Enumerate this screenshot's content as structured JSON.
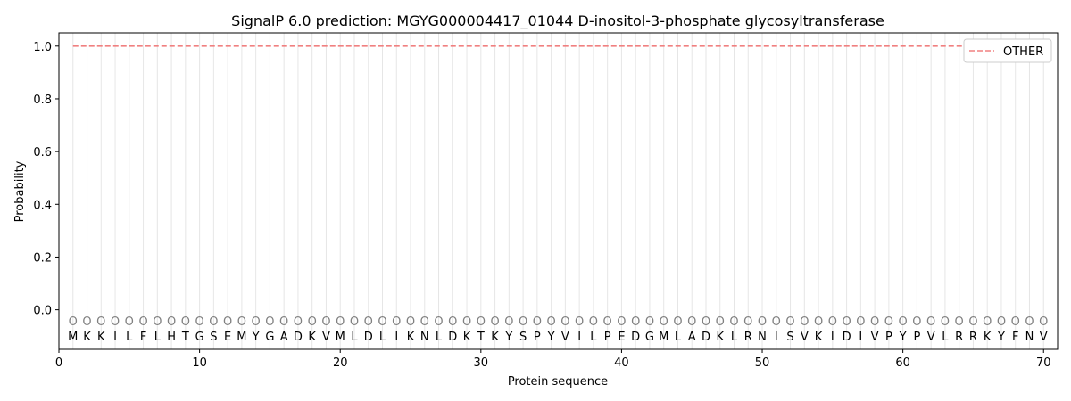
{
  "chart_data": {
    "type": "line",
    "title": "SignalP 6.0 prediction: MGYG000004417_01044 D-inositol-3-phosphate glycosyltransferase",
    "xlabel": "Protein sequence",
    "ylabel": "Probability",
    "xlim": [
      0,
      71
    ],
    "ylim": [
      -0.15,
      1.05
    ],
    "x_ticks": [
      0,
      10,
      20,
      30,
      40,
      50,
      60,
      70
    ],
    "y_ticks": [
      0.0,
      0.2,
      0.4,
      0.6,
      0.8,
      1.0
    ],
    "y_tick_labels": [
      "0.0",
      "0.2",
      "0.4",
      "0.6",
      "0.8",
      "1.0"
    ],
    "sequence": [
      "M",
      "K",
      "K",
      "I",
      "L",
      "F",
      "L",
      "H",
      "T",
      "G",
      "S",
      "E",
      "M",
      "Y",
      "G",
      "A",
      "D",
      "K",
      "V",
      "M",
      "L",
      "D",
      "L",
      "I",
      "K",
      "N",
      "L",
      "D",
      "K",
      "T",
      "K",
      "Y",
      "S",
      "P",
      "Y",
      "V",
      "I",
      "L",
      "P",
      "E",
      "D",
      "G",
      "M",
      "L",
      "A",
      "D",
      "K",
      "L",
      "R",
      "N",
      "I",
      "S",
      "V",
      "K",
      "I",
      "D",
      "I",
      "V",
      "P",
      "Y",
      "P",
      "V",
      "L",
      "R",
      "R",
      "K",
      "Y",
      "F",
      "N",
      "V"
    ],
    "region_label": "O",
    "region_marker_y": -0.045,
    "series": [
      {
        "name": "OTHER",
        "color": "#f08080",
        "style": "dashed",
        "x_range": [
          1,
          70
        ],
        "value": 1.0
      }
    ],
    "legend": {
      "position": "top-right",
      "entries": [
        "OTHER"
      ]
    },
    "grid": "vertical lines at each residue"
  }
}
